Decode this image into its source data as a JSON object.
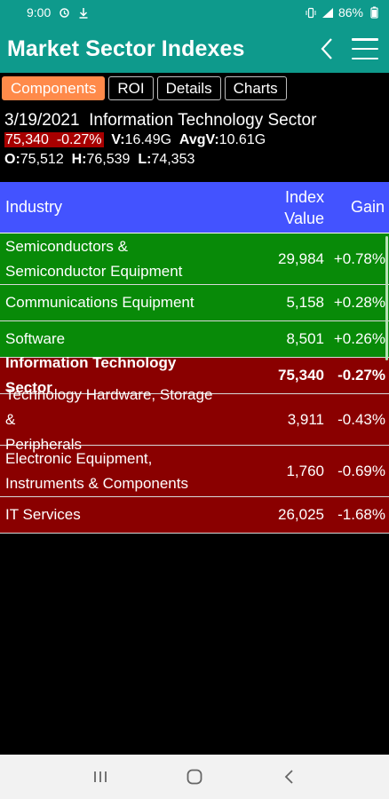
{
  "status_bar": {
    "time": "9:00",
    "battery": "86%",
    "icons": [
      "alarm-sync-icon",
      "download-icon",
      "vibrate-icon",
      "signal-icon",
      "battery-icon"
    ]
  },
  "app_bar": {
    "title": "Market Sector Indexes",
    "icons": [
      "back-chevron-icon",
      "hamburger-menu-icon"
    ]
  },
  "tabs": [
    {
      "label": "Components",
      "active": true
    },
    {
      "label": "ROI",
      "active": false
    },
    {
      "label": "Details",
      "active": false
    },
    {
      "label": "Charts",
      "active": false
    }
  ],
  "summary": {
    "date": "3/19/2021",
    "sector": "Information Technology Sector",
    "price": "75,340",
    "change": "-0.27%",
    "volume_label": "V:",
    "volume": "16.49G",
    "avg_volume_label": "AvgV:",
    "avg_volume": "10.61G",
    "open_label": "O:",
    "open": "75,512",
    "high_label": "H:",
    "high": "76,539",
    "low_label": "L:",
    "low": "74,353"
  },
  "table": {
    "headers": {
      "industry": "Industry",
      "value_line1": "Index",
      "value_line2": "Value",
      "gain": "Gain"
    },
    "rows": [
      {
        "name_line1": "Semiconductors &",
        "name_line2": "Semiconductor Equipment",
        "value": "29,984",
        "gain": "+0.78%",
        "color": "#088a08"
      },
      {
        "name_line1": "Communications Equipment",
        "name_line2": "",
        "value": "5,158",
        "gain": "+0.28%",
        "color": "#088a08"
      },
      {
        "name_line1": "Software",
        "name_line2": "",
        "value": "8,501",
        "gain": "+0.26%",
        "color": "#088a08"
      },
      {
        "name_line1": "Information Technology Sector",
        "name_line2": "",
        "value": "75,340",
        "gain": "-0.27%",
        "color": "#8a0000"
      },
      {
        "name_line1": "Technology Hardware, Storage &",
        "name_line2": "Peripherals",
        "value": "3,911",
        "gain": "-0.43%",
        "color": "#8a0000"
      },
      {
        "name_line1": "Electronic Equipment,",
        "name_line2": "Instruments & Components",
        "value": "1,760",
        "gain": "-0.69%",
        "color": "#8a0000"
      },
      {
        "name_line1": "IT Services",
        "name_line2": "",
        "value": "26,025",
        "gain": "-1.68%",
        "color": "#8a0000"
      }
    ]
  },
  "nav_bar": {
    "icons": [
      "recents-icon",
      "home-icon",
      "back-icon"
    ]
  },
  "colors": {
    "app_bar": "#0e9a8c",
    "active_tab": "#ff8a4a",
    "header": "#4353ff",
    "positive": "#088a08",
    "negative": "#8a0000"
  }
}
